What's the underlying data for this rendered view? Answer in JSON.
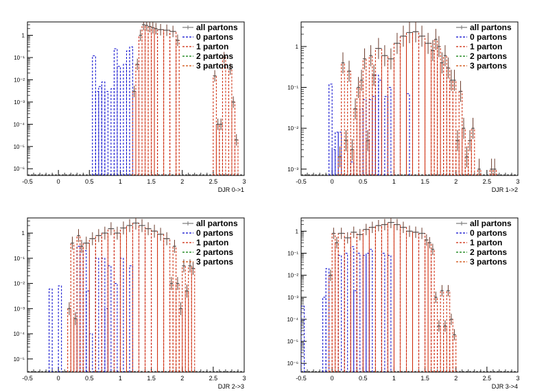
{
  "chart_data": [
    {
      "type": "histogram",
      "xlabel": "DJR 0->1",
      "xlim": [
        -0.5,
        3
      ],
      "ylim": [
        5e-07,
        4
      ],
      "log_y": true,
      "x_ticks": [
        "-0.5",
        "0",
        "0.5",
        "1",
        "1.5",
        "2",
        "2.5",
        "3"
      ],
      "y_ticks": [
        "1",
        "10⁻¹",
        "10⁻²",
        "10⁻³",
        "10⁻⁴",
        "10⁻⁵",
        "10⁻⁶"
      ],
      "legend": [
        "all partons",
        "0 partons",
        "1 parton",
        "2 partons",
        "3 partons"
      ],
      "series": [
        {
          "name": "0 partons",
          "color": "#0000cc",
          "bins": [
            [
              0.55,
              0.6,
              0.12
            ],
            [
              0.6,
              0.65,
              0.003
            ],
            [
              0.65,
              0.7,
              0.005
            ],
            [
              0.7,
              0.75,
              0.008
            ],
            [
              0.75,
              0.8,
              0.003
            ],
            [
              0.85,
              0.9,
              0.004
            ],
            [
              0.9,
              0.95,
              0.25
            ],
            [
              0.95,
              1.0,
              0.04
            ],
            [
              1.05,
              1.1,
              0.05
            ],
            [
              1.1,
              1.15,
              0.2
            ],
            [
              1.15,
              1.2,
              0.3
            ],
            [
              1.2,
              1.25,
              0.003
            ]
          ]
        },
        {
          "name": "1 parton",
          "color": "#cc2200",
          "bins": [
            [
              1.2,
              1.25,
              0.003
            ],
            [
              1.25,
              1.3,
              0.05
            ],
            [
              1.3,
              1.35,
              1.0
            ],
            [
              1.35,
              1.4,
              3.0
            ],
            [
              1.4,
              1.45,
              2.8
            ],
            [
              1.45,
              1.5,
              2.5
            ],
            [
              1.5,
              1.55,
              2.2
            ],
            [
              1.55,
              1.6,
              2.0
            ],
            [
              1.6,
              1.7,
              1.8
            ],
            [
              1.7,
              1.8,
              1.7
            ],
            [
              1.8,
              1.9,
              1.5
            ],
            [
              1.9,
              1.95,
              0.6
            ],
            [
              2.5,
              2.55,
              0.015
            ],
            [
              2.55,
              2.6,
              0.0001
            ],
            [
              2.6,
              2.65,
              0.0001
            ],
            [
              2.65,
              2.7,
              0.1
            ],
            [
              2.75,
              2.8,
              0.03
            ],
            [
              2.8,
              2.85,
              0.001
            ],
            [
              2.85,
              2.9,
              2e-05
            ]
          ]
        }
      ]
    },
    {
      "type": "histogram",
      "xlabel": "DJR 1->2",
      "xlim": [
        -0.5,
        3
      ],
      "ylim": [
        0.0007,
        4
      ],
      "log_y": true,
      "x_ticks": [
        "-0.5",
        "0",
        "0.5",
        "1",
        "1.5",
        "2",
        "2.5",
        "3"
      ],
      "y_ticks": [
        "1",
        "10⁻¹",
        "10⁻²",
        "10⁻³"
      ],
      "legend": [
        "all partons",
        "0 partons",
        "1 parton",
        "2 partons",
        "3 partons"
      ],
      "series": [
        {
          "name": "0 partons",
          "color": "#0000cc",
          "bins": [
            [
              -0.05,
              0.0,
              0.12
            ],
            [
              0.0,
              0.05,
              0.003
            ],
            [
              0.05,
              0.1,
              0.008
            ],
            [
              0.1,
              0.15,
              0.008
            ],
            [
              0.3,
              0.35,
              0.0015
            ],
            [
              0.45,
              0.5,
              0.03
            ],
            [
              0.5,
              0.55,
              0.05
            ],
            [
              0.6,
              0.65,
              0.05
            ],
            [
              0.65,
              0.7,
              0.06
            ],
            [
              0.7,
              0.75,
              0.2
            ],
            [
              0.75,
              0.8,
              0.15
            ],
            [
              0.85,
              0.9,
              0.06
            ],
            [
              0.9,
              0.95,
              0.1
            ],
            [
              1.2,
              1.25,
              0.07
            ]
          ]
        },
        {
          "name": "1 parton",
          "color": "#cc2200",
          "bins": [
            [
              0.1,
              0.15,
              0.002
            ],
            [
              0.15,
              0.2,
              0.4
            ],
            [
              0.2,
              0.25,
              0.005
            ],
            [
              0.25,
              0.3,
              0.25
            ],
            [
              0.3,
              0.35,
              0.003
            ],
            [
              0.35,
              0.4,
              0.03
            ],
            [
              0.4,
              0.45,
              0.1
            ],
            [
              0.45,
              0.5,
              0.15
            ],
            [
              0.5,
              0.55,
              0.5
            ],
            [
              0.55,
              0.6,
              0.005
            ],
            [
              0.6,
              0.65,
              0.6
            ],
            [
              0.65,
              0.7,
              0.2
            ],
            [
              0.7,
              0.8,
              0.9
            ],
            [
              0.8,
              0.9,
              0.6
            ],
            [
              0.9,
              1.0,
              0.5
            ],
            [
              1.0,
              1.1,
              1.2
            ],
            [
              1.1,
              1.2,
              1.8
            ],
            [
              1.2,
              1.3,
              2.2
            ],
            [
              1.3,
              1.4,
              2.3
            ],
            [
              1.4,
              1.5,
              1.8
            ],
            [
              1.5,
              1.6,
              1.2
            ],
            [
              1.6,
              1.65,
              0.8
            ],
            [
              1.65,
              1.7,
              1.5
            ],
            [
              1.7,
              1.75,
              1.0
            ],
            [
              1.75,
              1.8,
              0.4
            ],
            [
              1.8,
              1.85,
              0.6
            ],
            [
              1.85,
              1.9,
              0.3
            ],
            [
              1.9,
              1.95,
              0.15
            ],
            [
              1.95,
              2.0,
              0.15
            ],
            [
              2.0,
              2.05,
              0.005
            ],
            [
              2.05,
              2.1,
              0.08
            ],
            [
              2.1,
              2.15,
              0.01
            ],
            [
              2.15,
              2.2,
              0.002
            ],
            [
              2.2,
              2.25,
              0.005
            ],
            [
              2.25,
              2.3,
              0.01
            ],
            [
              2.35,
              2.4,
              0.001
            ],
            [
              2.55,
              2.6,
              0.001
            ],
            [
              2.6,
              2.65,
              0.001
            ]
          ]
        }
      ]
    },
    {
      "type": "histogram",
      "xlabel": "DJR 2->3",
      "xlim": [
        -0.5,
        3
      ],
      "ylim": [
        3e-06,
        4
      ],
      "log_y": true,
      "x_ticks": [
        "-0.5",
        "0",
        "0.5",
        "1",
        "1.5",
        "2",
        "2.5",
        "3"
      ],
      "y_ticks": [
        "1",
        "10⁻¹",
        "10⁻²",
        "10⁻³",
        "10⁻⁴",
        "10⁻⁵"
      ],
      "legend": [
        "all partons",
        "0 partons",
        "1 parton",
        "2 partons",
        "3 partons"
      ],
      "series": [
        {
          "name": "0 partons",
          "color": "#0000cc",
          "bins": [
            [
              -0.15,
              -0.1,
              0.006
            ],
            [
              0.0,
              0.05,
              0.008
            ],
            [
              0.3,
              0.35,
              0.3
            ],
            [
              0.4,
              0.45,
              0.2
            ],
            [
              0.45,
              0.5,
              0.005
            ],
            [
              0.5,
              0.55,
              0.0001
            ],
            [
              0.6,
              0.65,
              0.1
            ],
            [
              0.7,
              0.75,
              0.1
            ],
            [
              0.75,
              0.8,
              0.001
            ],
            [
              0.8,
              0.85,
              0.05
            ],
            [
              0.9,
              0.95,
              0.01
            ],
            [
              1.0,
              1.05,
              0.1
            ],
            [
              1.15,
              1.2,
              0.05
            ]
          ]
        },
        {
          "name": "1 parton",
          "color": "#cc2200",
          "bins": [
            [
              0.15,
              0.2,
              0.001
            ],
            [
              0.2,
              0.25,
              0.4
            ],
            [
              0.25,
              0.3,
              0.0004
            ],
            [
              0.3,
              0.35,
              0.8
            ],
            [
              0.35,
              0.4,
              0.3
            ],
            [
              0.4,
              0.5,
              0.4
            ],
            [
              0.5,
              0.6,
              0.6
            ],
            [
              0.6,
              0.7,
              0.8
            ],
            [
              0.7,
              0.8,
              1.0
            ],
            [
              0.8,
              0.9,
              1.5
            ],
            [
              0.9,
              1.0,
              1.0
            ],
            [
              1.0,
              1.1,
              1.6
            ],
            [
              1.1,
              1.2,
              2.0
            ],
            [
              1.2,
              1.3,
              2.5
            ],
            [
              1.3,
              1.4,
              2.0
            ],
            [
              1.4,
              1.5,
              1.5
            ],
            [
              1.5,
              1.6,
              1.2
            ],
            [
              1.6,
              1.7,
              0.9
            ],
            [
              1.7,
              1.8,
              0.6
            ],
            [
              1.8,
              1.85,
              0.01
            ],
            [
              1.85,
              1.9,
              0.3
            ],
            [
              1.9,
              1.95,
              0.01
            ],
            [
              1.95,
              2.0,
              0.001
            ],
            [
              2.0,
              2.05,
              0.05
            ],
            [
              2.05,
              2.1,
              0.005
            ],
            [
              2.1,
              2.15,
              0.05
            ],
            [
              2.15,
              2.2,
              0.04
            ]
          ]
        }
      ]
    },
    {
      "type": "histogram",
      "xlabel": "DJR 3->4",
      "xlim": [
        -0.5,
        3
      ],
      "ylim": [
        4e-07,
        4
      ],
      "log_y": true,
      "x_ticks": [
        "-0.5",
        "0",
        "0.5",
        "1",
        "1.5",
        "2",
        "2.5",
        "3"
      ],
      "y_ticks": [
        "1",
        "10⁻¹",
        "10⁻²",
        "10⁻³",
        "10⁻⁴",
        "10⁻⁵",
        "10⁻⁶"
      ],
      "legend": [
        "all partons",
        "0 partons",
        "1 parton",
        "2 partons",
        "3 partons"
      ],
      "series": [
        {
          "name": "0 partons",
          "color": "#0000cc",
          "bins": [
            [
              -0.5,
              -0.45,
              0.0004
            ],
            [
              -0.15,
              -0.1,
              0.001
            ],
            [
              -0.1,
              -0.05,
              0.02
            ],
            [
              0.1,
              0.15,
              0.08
            ],
            [
              0.2,
              0.25,
              0.1
            ],
            [
              0.3,
              0.35,
              0.2
            ],
            [
              0.35,
              0.4,
              0.002
            ],
            [
              0.4,
              0.45,
              0.1
            ],
            [
              0.5,
              0.55,
              0.08
            ],
            [
              0.55,
              0.6,
              0.1
            ],
            [
              0.6,
              0.65,
              0.15
            ],
            [
              0.8,
              0.85,
              0.1
            ],
            [
              0.9,
              0.95,
              0.08
            ]
          ]
        },
        {
          "name": "1 parton",
          "color": "#cc2200",
          "bins": [
            [
              -0.05,
              0.0,
              0.01
            ],
            [
              0.0,
              0.05,
              0.8
            ],
            [
              0.05,
              0.1,
              0.3
            ],
            [
              0.1,
              0.2,
              0.8
            ],
            [
              0.2,
              0.3,
              0.5
            ],
            [
              0.3,
              0.4,
              0.9
            ],
            [
              0.4,
              0.5,
              0.7
            ],
            [
              0.5,
              0.6,
              1.2
            ],
            [
              0.6,
              0.7,
              1.5
            ],
            [
              0.7,
              0.8,
              1.8
            ],
            [
              0.8,
              0.9,
              2.0
            ],
            [
              0.9,
              1.0,
              2.5
            ],
            [
              1.0,
              1.1,
              2.0
            ],
            [
              1.1,
              1.2,
              1.5
            ],
            [
              1.2,
              1.3,
              1.0
            ],
            [
              1.3,
              1.4,
              0.9
            ],
            [
              1.4,
              1.5,
              0.8
            ],
            [
              1.5,
              1.55,
              0.4
            ],
            [
              1.55,
              1.6,
              0.3
            ],
            [
              1.6,
              1.65,
              0.15
            ],
            [
              1.65,
              1.7,
              0.001
            ],
            [
              1.7,
              1.75,
              5e-05
            ],
            [
              1.75,
              1.8,
              0.002
            ],
            [
              1.8,
              1.85,
              5e-05
            ],
            [
              1.85,
              1.9,
              0.002
            ],
            [
              1.9,
              1.95,
              0.0001
            ],
            [
              1.95,
              2.0,
              2e-05
            ]
          ]
        }
      ]
    }
  ]
}
